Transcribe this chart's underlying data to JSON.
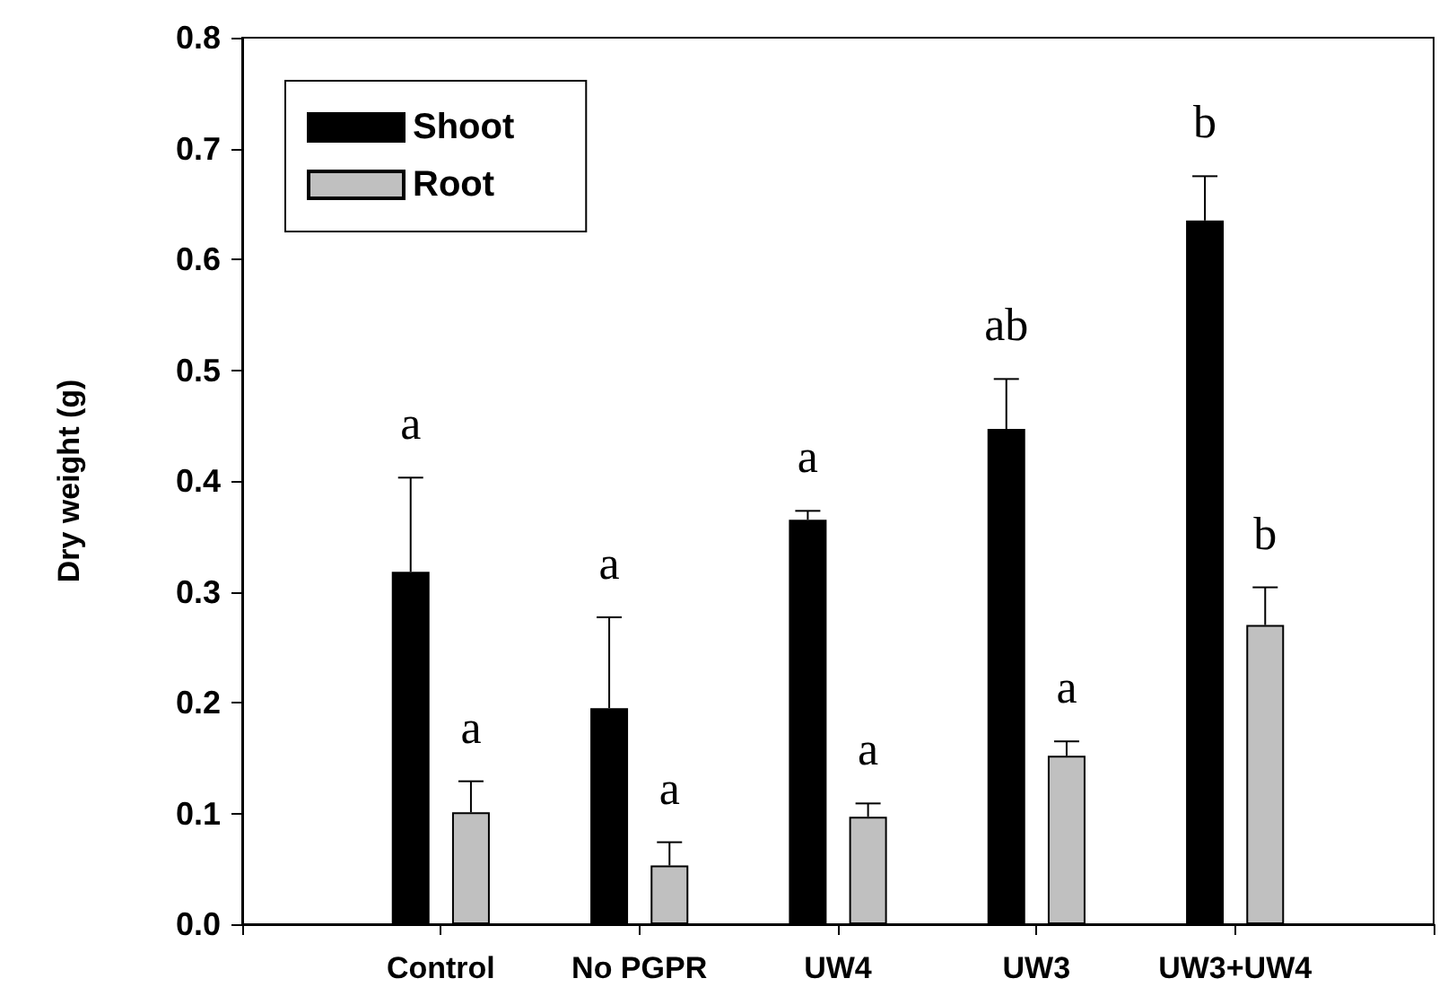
{
  "chart_data": {
    "type": "bar",
    "categories": [
      null,
      "Control",
      "No PGPR",
      "UW4",
      "UW3",
      "UW3+UW4",
      null
    ],
    "ylabel": "Dry weight (g)",
    "series": [
      {
        "name": "Shoot",
        "color": "#000000",
        "values": [
          null,
          0.318,
          0.195,
          0.365,
          0.447,
          0.635,
          null
        ],
        "value_labels": [
          null,
          "a",
          "a",
          "a",
          "ab",
          "b",
          null
        ],
        "errors": [
          null,
          [
            0.318,
            0.403
          ],
          [
            0.195,
            0.277
          ],
          [
            0.365,
            0.373
          ],
          [
            0.447,
            0.492
          ],
          [
            0.635,
            0.675
          ],
          null
        ]
      },
      {
        "name": "Root",
        "color": "#c0c0c0",
        "values": [
          null,
          0.101,
          0.053,
          0.097,
          0.152,
          0.27,
          null
        ],
        "value_labels": [
          null,
          "a",
          "a",
          "a",
          "a",
          "b",
          null
        ],
        "errors": [
          null,
          [
            0.101,
            0.129
          ],
          [
            0.053,
            0.074
          ],
          [
            0.097,
            0.109
          ],
          [
            0.152,
            0.165
          ],
          [
            0.27,
            0.304
          ],
          null
        ]
      }
    ],
    "ylim": [
      0,
      0.8
    ],
    "yticks": [
      {
        "value": 0,
        "label": "0.0"
      },
      {
        "value": 0.1,
        "label": "0.1"
      },
      {
        "value": 0.2,
        "label": "0.2"
      },
      {
        "value": 0.3,
        "label": "0.3"
      },
      {
        "value": 0.4,
        "label": "0.4"
      },
      {
        "value": 0.5,
        "label": "0.5"
      },
      {
        "value": 0.6,
        "label": "0.6"
      },
      {
        "value": 0.7,
        "label": "0.7"
      },
      {
        "value": 0.8,
        "label": "0.8"
      }
    ],
    "legend": "top left",
    "grid": false
  }
}
